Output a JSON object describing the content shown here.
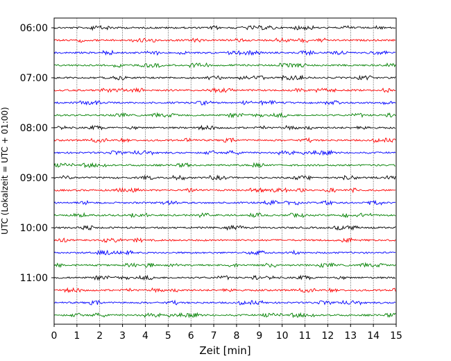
{
  "chart_data": {
    "type": "line",
    "title": "",
    "xlabel": "Zeit  [min]",
    "ylabel": "UTC (Lokalzeit = UTC + 01:00)",
    "xlim": [
      0,
      15
    ],
    "x_ticks": [
      0,
      1,
      2,
      3,
      4,
      5,
      6,
      7,
      8,
      9,
      10,
      11,
      12,
      13,
      14,
      15
    ],
    "x_tick_labels": [
      "0",
      "1",
      "2",
      "3",
      "4",
      "5",
      "6",
      "7",
      "8",
      "9",
      "10",
      "11",
      "12",
      "13",
      "14",
      "15"
    ],
    "y_tick_labels": [
      "06:00",
      "07:00",
      "08:00",
      "09:00",
      "10:00",
      "11:00"
    ],
    "grid": "vertical dotted",
    "trace_interval_minutes": 15,
    "trace_count": 24,
    "trace_colors": [
      "#000000",
      "#ff0000",
      "#0000ff",
      "#008000"
    ]
  }
}
